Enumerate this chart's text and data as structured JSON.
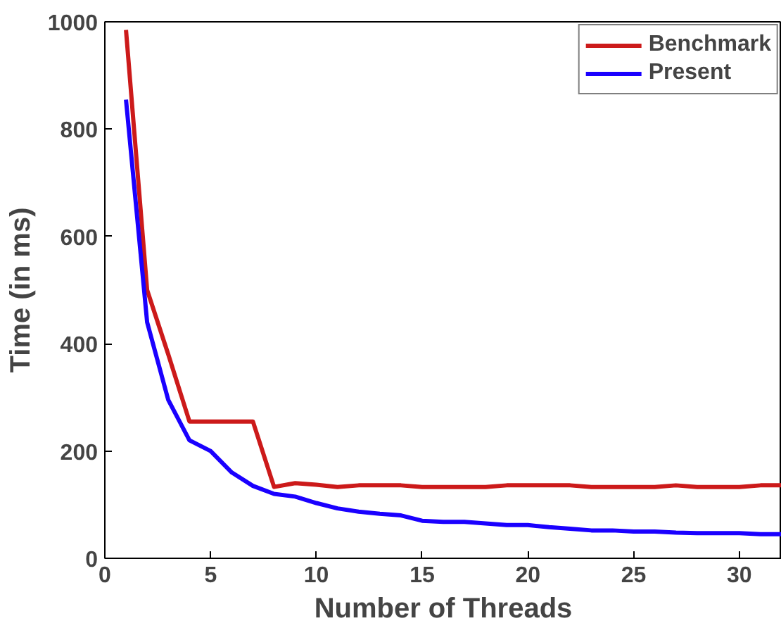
{
  "chart_data": {
    "type": "line",
    "xlabel": "Number of Threads",
    "ylabel": "Time (in ms)",
    "x": [
      1,
      2,
      3,
      4,
      5,
      6,
      7,
      8,
      9,
      10,
      11,
      12,
      13,
      14,
      15,
      16,
      17,
      18,
      19,
      20,
      21,
      22,
      23,
      24,
      25,
      26,
      27,
      28,
      29,
      30,
      31,
      32
    ],
    "series": [
      {
        "name": "Benchmark",
        "color": "#cc1a1a",
        "values": [
          985,
          500,
          380,
          255,
          255,
          255,
          255,
          133,
          140,
          137,
          133,
          136,
          136,
          136,
          133,
          133,
          133,
          133,
          136,
          136,
          136,
          136,
          133,
          133,
          133,
          133,
          136,
          133,
          133,
          133,
          136,
          136
        ]
      },
      {
        "name": "Present",
        "color": "#1a00ff",
        "values": [
          855,
          440,
          295,
          220,
          200,
          160,
          135,
          120,
          115,
          103,
          93,
          87,
          83,
          80,
          70,
          68,
          68,
          65,
          62,
          62,
          58,
          55,
          52,
          52,
          50,
          50,
          48,
          47,
          47,
          47,
          45,
          45
        ]
      }
    ],
    "xlim": [
      0,
      32
    ],
    "ylim": [
      0,
      1000
    ],
    "xticks": [
      0,
      5,
      10,
      15,
      20,
      25,
      30
    ],
    "yticks": [
      0,
      200,
      400,
      600,
      800,
      1000
    ],
    "grid": false,
    "legend": "top right",
    "marker": "none",
    "line_style": "solid"
  }
}
